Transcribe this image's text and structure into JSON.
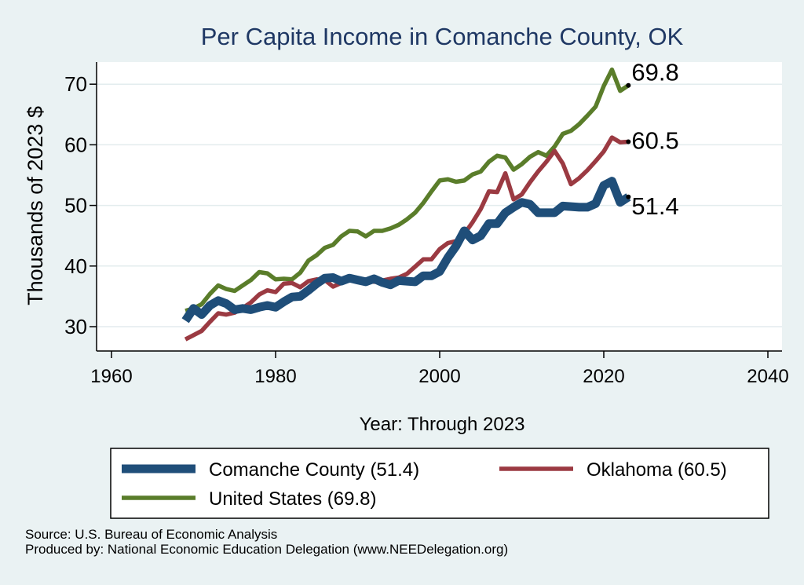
{
  "chart_data": {
    "type": "line",
    "title": "Per Capita Income in Comanche County, OK",
    "xlabel": "Year: Through 2023",
    "ylabel": "Thousands of 2023 $",
    "xlim": [
      1960,
      2040
    ],
    "ylim": [
      27,
      75
    ],
    "xticks": [
      1960,
      1980,
      2000,
      2020,
      2040
    ],
    "yticks": [
      30,
      40,
      50,
      60,
      70
    ],
    "grid": "horizontal",
    "legend_position": "bottom",
    "series": [
      {
        "name": "Comanche County (51.4)",
        "color": "#1f4e79",
        "end_label": "51.4",
        "x": [
          1969,
          1970,
          1971,
          1972,
          1973,
          1974,
          1975,
          1976,
          1977,
          1978,
          1979,
          1980,
          1981,
          1982,
          1983,
          1984,
          1985,
          1986,
          1987,
          1988,
          1989,
          1990,
          1991,
          1992,
          1993,
          1994,
          1995,
          1996,
          1997,
          1998,
          1999,
          2000,
          2001,
          2002,
          2003,
          2004,
          2005,
          2006,
          2007,
          2008,
          2009,
          2010,
          2011,
          2012,
          2013,
          2014,
          2015,
          2016,
          2017,
          2018,
          2019,
          2020,
          2021,
          2022,
          2023
        ],
        "values": [
          31.0,
          33.0,
          32.0,
          33.5,
          34.3,
          33.8,
          32.8,
          33.0,
          32.8,
          33.2,
          33.5,
          33.2,
          34.1,
          34.9,
          35.0,
          36.0,
          37.1,
          38.0,
          38.1,
          37.5,
          38.0,
          37.7,
          37.4,
          37.9,
          37.3,
          36.9,
          37.6,
          37.5,
          37.4,
          38.4,
          38.4,
          39.1,
          41.4,
          43.3,
          45.8,
          44.3,
          45.0,
          47.0,
          47.0,
          48.8,
          49.7,
          50.5,
          50.2,
          48.8,
          48.8,
          48.8,
          49.9,
          49.8,
          49.7,
          49.7,
          50.3,
          53.3,
          54.0,
          50.5,
          51.4
        ]
      },
      {
        "name": "Oklahoma (60.5)",
        "color": "#9b3a42",
        "end_label": "60.5",
        "x": [
          1969,
          1970,
          1971,
          1972,
          1973,
          1974,
          1975,
          1976,
          1977,
          1978,
          1979,
          1980,
          1981,
          1982,
          1983,
          1984,
          1985,
          1986,
          1987,
          1988,
          1989,
          1990,
          1991,
          1992,
          1993,
          1994,
          1995,
          1996,
          1997,
          1998,
          1999,
          2000,
          2001,
          2002,
          2003,
          2004,
          2005,
          2006,
          2007,
          2008,
          2009,
          2010,
          2011,
          2012,
          2013,
          2014,
          2015,
          2016,
          2017,
          2018,
          2019,
          2020,
          2021,
          2022,
          2023
        ],
        "values": [
          27.9,
          28.6,
          29.3,
          30.8,
          32.2,
          32.0,
          32.3,
          33.1,
          34.0,
          35.3,
          36.0,
          35.7,
          37.1,
          37.2,
          36.5,
          37.5,
          37.8,
          37.7,
          36.6,
          37.2,
          37.9,
          37.6,
          37.8,
          37.4,
          37.6,
          37.9,
          38.1,
          38.7,
          39.9,
          41.1,
          41.1,
          42.8,
          43.8,
          44.1,
          45.3,
          47.2,
          49.4,
          52.3,
          52.2,
          55.3,
          51.0,
          51.8,
          53.8,
          55.6,
          57.2,
          59.0,
          56.9,
          53.5,
          54.5,
          55.8,
          57.3,
          58.9,
          61.2,
          60.4,
          60.5
        ]
      },
      {
        "name": "United States (69.8)",
        "color": "#5a7d2a",
        "end_label": "69.8",
        "x": [
          1969,
          1970,
          1971,
          1972,
          1973,
          1974,
          1975,
          1976,
          1977,
          1978,
          1979,
          1980,
          1981,
          1982,
          1983,
          1984,
          1985,
          1986,
          1987,
          1988,
          1989,
          1990,
          1991,
          1992,
          1993,
          1994,
          1995,
          1996,
          1997,
          1998,
          1999,
          2000,
          2001,
          2002,
          2003,
          2004,
          2005,
          2006,
          2007,
          2008,
          2009,
          2010,
          2011,
          2012,
          2013,
          2014,
          2015,
          2016,
          2017,
          2018,
          2019,
          2020,
          2021,
          2022,
          2023
        ],
        "values": [
          32.6,
          33.0,
          33.7,
          35.4,
          36.8,
          36.2,
          35.9,
          36.8,
          37.7,
          39.0,
          38.8,
          37.8,
          37.9,
          37.8,
          38.9,
          40.9,
          41.8,
          43.0,
          43.5,
          44.9,
          45.8,
          45.7,
          44.9,
          45.8,
          45.8,
          46.2,
          46.8,
          47.7,
          48.8,
          50.4,
          52.3,
          54.1,
          54.3,
          53.9,
          54.1,
          55.1,
          55.6,
          57.2,
          58.2,
          57.9,
          55.9,
          56.8,
          58.0,
          58.8,
          58.2,
          59.7,
          61.8,
          62.3,
          63.4,
          64.8,
          66.3,
          69.7,
          72.4,
          68.9,
          69.8
        ]
      }
    ]
  },
  "footer": {
    "source": "Source: U.S. Bureau of Economic Analysis",
    "produced_by": "Produced by: National Economic Education Delegation (www.NEEDelegation.org)"
  },
  "colors": {
    "background": "#eaf2f3",
    "plot_background": "#ffffff",
    "title": "#1f3864"
  }
}
